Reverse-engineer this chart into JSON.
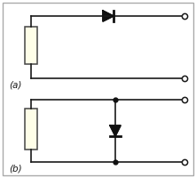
{
  "bg_color": "#ffffff",
  "border_color": "#aaaaaa",
  "line_color": "#1a1a1a",
  "resistor_fill": "#fefee8",
  "resistor_edge": "#444444",
  "diode_color": "#111111",
  "dot_color": "#111111",
  "label_a": "(a)",
  "label_b": "(b)",
  "label_fontsize": 7.5,
  "fig_width": 2.21,
  "fig_height": 2.0,
  "dpi": 100
}
